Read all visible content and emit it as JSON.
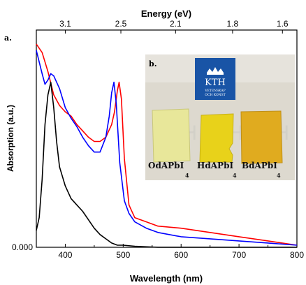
{
  "chart_data": {
    "type": "line",
    "panel_label": "a.",
    "xlabel": "Wavelength (nm)",
    "ylabel": "Absorption (a.u.)",
    "top_axis_label": "Energy (eV)",
    "xlim": [
      350,
      800
    ],
    "ylim": [
      0,
      1
    ],
    "x_ticks": [
      400,
      500,
      600,
      700,
      800
    ],
    "x_tick_labels": [
      "400",
      "500",
      "600",
      "700",
      "800"
    ],
    "y_ticks": [
      0
    ],
    "y_tick_labels": [
      "0.000"
    ],
    "top_ticks": [
      {
        "energy": 3.1,
        "label": "3.1"
      },
      {
        "energy": 2.5,
        "label": "2.5"
      },
      {
        "energy": 2.1,
        "label": "2.1"
      },
      {
        "energy": 1.8,
        "label": "1.8"
      },
      {
        "energy": 1.6,
        "label": "1.6"
      }
    ],
    "series": [
      {
        "color": "#ff0000",
        "x": [
          350,
          360,
          370,
          380,
          390,
          400,
          410,
          420,
          430,
          440,
          450,
          460,
          470,
          480,
          485,
          490,
          493,
          497,
          502,
          510,
          520,
          540,
          560,
          600,
          650,
          700,
          750,
          800
        ],
        "y": [
          0.96,
          0.92,
          0.83,
          0.72,
          0.67,
          0.64,
          0.62,
          0.58,
          0.55,
          0.52,
          0.5,
          0.5,
          0.52,
          0.58,
          0.64,
          0.74,
          0.78,
          0.7,
          0.42,
          0.2,
          0.14,
          0.12,
          0.1,
          0.09,
          0.07,
          0.05,
          0.03,
          0.01
        ]
      },
      {
        "color": "#0000ff",
        "x": [
          350,
          360,
          365,
          370,
          375,
          380,
          390,
          400,
          410,
          420,
          430,
          440,
          450,
          460,
          470,
          476,
          480,
          484,
          488,
          494,
          502,
          510,
          520,
          540,
          560,
          600,
          650,
          700,
          750,
          800
        ],
        "y": [
          0.93,
          0.82,
          0.77,
          0.79,
          0.82,
          0.81,
          0.75,
          0.66,
          0.61,
          0.57,
          0.52,
          0.48,
          0.45,
          0.45,
          0.52,
          0.62,
          0.73,
          0.78,
          0.68,
          0.4,
          0.22,
          0.16,
          0.12,
          0.09,
          0.07,
          0.05,
          0.04,
          0.03,
          0.02,
          0.01
        ]
      },
      {
        "color": "#000000",
        "x": [
          350,
          355,
          360,
          365,
          370,
          375,
          380,
          385,
          390,
          400,
          410,
          420,
          430,
          440,
          450,
          460,
          470,
          480,
          490,
          500,
          520,
          560,
          600,
          650,
          700,
          750,
          800
        ],
        "y": [
          0.08,
          0.14,
          0.32,
          0.58,
          0.72,
          0.78,
          0.66,
          0.5,
          0.38,
          0.29,
          0.23,
          0.2,
          0.17,
          0.13,
          0.09,
          0.06,
          0.04,
          0.02,
          0.01,
          0.01,
          0.005,
          0.0,
          0.0,
          0.0,
          0.0,
          0.0,
          0.0
        ]
      }
    ]
  },
  "inset": {
    "panel_label": "b.",
    "logo_text": "KTH",
    "logo_subtext_1": "VETENSKAP",
    "logo_subtext_2": "OCH KONST",
    "watermark": [
      "KTH",
      "KTH",
      "KTH"
    ],
    "samples": [
      {
        "name": "OdAPbI",
        "subscript": "4",
        "color": "#e8e79a"
      },
      {
        "name": "HdAPbI",
        "subscript": "4",
        "color": "#e8d21a"
      },
      {
        "name": "BdAPbI",
        "subscript": "4",
        "color": "#e0ab1f"
      }
    ],
    "colors": {
      "logo_blue": "#1954a6",
      "backdrop": "#ddd9cf"
    }
  }
}
